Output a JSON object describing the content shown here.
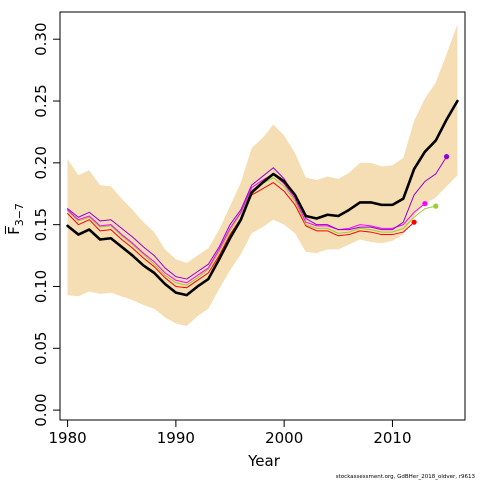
{
  "chart_data": {
    "type": "line",
    "xlabel": "Year",
    "ylabel": "F̅",
    "ylabel_sub": "3−7",
    "footnote": "stockassessment.org, GdBHer_2018_oldver, r9613",
    "xlim": [
      1979.3,
      2016.7
    ],
    "ylim": [
      -0.008,
      0.322
    ],
    "xticks": [
      1980,
      1990,
      2000,
      2010
    ],
    "yticks": [
      "0.00",
      "0.05",
      "0.10",
      "0.15",
      "0.20",
      "0.25",
      "0.30"
    ],
    "colors": {
      "band": "#f5deb3",
      "main": "#000000",
      "retro": [
        "#ff0000",
        "#9acd32",
        "#ff00ff",
        "#9400d3"
      ]
    },
    "band": {
      "x": [
        1980,
        1981,
        1982,
        1983,
        1984,
        1985,
        1986,
        1987,
        1988,
        1989,
        1990,
        1991,
        1992,
        1993,
        1994,
        1995,
        1996,
        1997,
        1998,
        1999,
        2000,
        2001,
        2002,
        2003,
        2004,
        2005,
        2006,
        2007,
        2008,
        2009,
        2010,
        2011,
        2012,
        2013,
        2014,
        2015,
        2016
      ],
      "lower": [
        0.093,
        0.092,
        0.096,
        0.094,
        0.095,
        0.092,
        0.089,
        0.085,
        0.082,
        0.075,
        0.07,
        0.068,
        0.076,
        0.082,
        0.098,
        0.113,
        0.126,
        0.143,
        0.148,
        0.154,
        0.15,
        0.143,
        0.128,
        0.127,
        0.13,
        0.13,
        0.134,
        0.138,
        0.136,
        0.135,
        0.137,
        0.142,
        0.157,
        0.167,
        0.172,
        0.181,
        0.19
      ],
      "upper": [
        0.203,
        0.19,
        0.194,
        0.182,
        0.181,
        0.171,
        0.162,
        0.152,
        0.144,
        0.13,
        0.122,
        0.119,
        0.125,
        0.131,
        0.146,
        0.165,
        0.184,
        0.212,
        0.22,
        0.231,
        0.222,
        0.208,
        0.188,
        0.186,
        0.189,
        0.187,
        0.192,
        0.2,
        0.2,
        0.197,
        0.198,
        0.204,
        0.234,
        0.252,
        0.265,
        0.288,
        0.312
      ]
    },
    "series": [
      {
        "x": [
          1980,
          1981,
          1982,
          1983,
          1984,
          1985,
          1986,
          1987,
          1988,
          1989,
          1990,
          1991,
          1992,
          1993,
          1994,
          1995,
          1996,
          1997,
          1998,
          1999,
          2000,
          2001,
          2002,
          2003,
          2004,
          2005,
          2006,
          2007,
          2008,
          2009,
          2010,
          2011,
          2012,
          2013,
          2014,
          2015,
          2016
        ],
        "values": [
          0.149,
          0.142,
          0.146,
          0.138,
          0.139,
          0.132,
          0.125,
          0.117,
          0.111,
          0.102,
          0.095,
          0.093,
          0.1,
          0.106,
          0.122,
          0.139,
          0.154,
          0.176,
          0.184,
          0.191,
          0.185,
          0.174,
          0.157,
          0.155,
          0.158,
          0.157,
          0.162,
          0.168,
          0.168,
          0.166,
          0.166,
          0.171,
          0.195,
          0.209,
          0.218,
          0.235,
          0.25
        ],
        "color": "#000000",
        "width": 2.6
      },
      {
        "x": [
          1980,
          1981,
          1982,
          1983,
          1984,
          1985,
          1986,
          1987,
          1988,
          1989,
          1990,
          1991,
          1992,
          1993,
          1994,
          1995,
          1996,
          1997,
          1998,
          1999,
          2000,
          2001,
          2002,
          2003,
          2004,
          2005,
          2006,
          2007,
          2008,
          2009,
          2010,
          2011,
          2012
        ],
        "values": [
          0.159,
          0.15,
          0.154,
          0.145,
          0.146,
          0.138,
          0.131,
          0.123,
          0.116,
          0.107,
          0.1,
          0.099,
          0.105,
          0.111,
          0.125,
          0.142,
          0.155,
          0.174,
          0.179,
          0.184,
          0.177,
          0.166,
          0.149,
          0.145,
          0.145,
          0.141,
          0.142,
          0.145,
          0.144,
          0.142,
          0.142,
          0.144,
          0.152
        ],
        "color": "#ff0000",
        "width": 1.0,
        "end_point": true
      },
      {
        "x": [
          1980,
          1981,
          1982,
          1983,
          1984,
          1985,
          1986,
          1987,
          1988,
          1989,
          1990,
          1991,
          1992,
          1993,
          1994,
          1995,
          1996,
          1997,
          1998,
          1999,
          2000,
          2001,
          2002,
          2003,
          2004,
          2005,
          2006,
          2007,
          2008,
          2009,
          2010,
          2011,
          2012,
          2013,
          2014
        ],
        "values": [
          0.161,
          0.153,
          0.156,
          0.148,
          0.149,
          0.141,
          0.134,
          0.126,
          0.118,
          0.109,
          0.103,
          0.101,
          0.107,
          0.114,
          0.128,
          0.145,
          0.159,
          0.178,
          0.183,
          0.188,
          0.181,
          0.169,
          0.15,
          0.147,
          0.147,
          0.143,
          0.144,
          0.147,
          0.146,
          0.144,
          0.144,
          0.147,
          0.156,
          0.163,
          0.165
        ],
        "color": "#9acd32",
        "width": 1.0,
        "end_point": true
      },
      {
        "x": [
          1980,
          1981,
          1982,
          1983,
          1984,
          1985,
          1986,
          1987,
          1988,
          1989,
          1990,
          1991,
          1992,
          1993,
          1994,
          1995,
          1996,
          1997,
          1998,
          1999,
          2000,
          2001,
          2002,
          2003,
          2004,
          2005,
          2006,
          2007,
          2008,
          2009,
          2010,
          2011,
          2012,
          2013
        ],
        "values": [
          0.162,
          0.154,
          0.157,
          0.149,
          0.15,
          0.142,
          0.135,
          0.127,
          0.12,
          0.111,
          0.105,
          0.103,
          0.109,
          0.115,
          0.13,
          0.147,
          0.16,
          0.18,
          0.186,
          0.191,
          0.183,
          0.171,
          0.152,
          0.149,
          0.149,
          0.146,
          0.147,
          0.15,
          0.149,
          0.147,
          0.147,
          0.15,
          0.16,
          0.167
        ],
        "color": "#ff00ff",
        "width": 1.0,
        "end_point": true
      },
      {
        "x": [
          1980,
          1981,
          1982,
          1983,
          1984,
          1985,
          1986,
          1987,
          1988,
          1989,
          1990,
          1991,
          1992,
          1993,
          1994,
          1995,
          1996,
          1997,
          1998,
          1999,
          2000,
          2001,
          2002,
          2003,
          2004,
          2005,
          2006,
          2007,
          2008,
          2009,
          2010,
          2011,
          2012,
          2013,
          2014,
          2015
        ],
        "values": [
          0.163,
          0.156,
          0.16,
          0.153,
          0.154,
          0.147,
          0.14,
          0.132,
          0.125,
          0.115,
          0.108,
          0.106,
          0.112,
          0.118,
          0.132,
          0.15,
          0.162,
          0.182,
          0.189,
          0.196,
          0.187,
          0.173,
          0.155,
          0.15,
          0.15,
          0.146,
          0.146,
          0.148,
          0.148,
          0.146,
          0.146,
          0.152,
          0.174,
          0.185,
          0.191,
          0.205
        ],
        "color": "#9400d3",
        "width": 1.0,
        "end_point": true
      }
    ]
  }
}
